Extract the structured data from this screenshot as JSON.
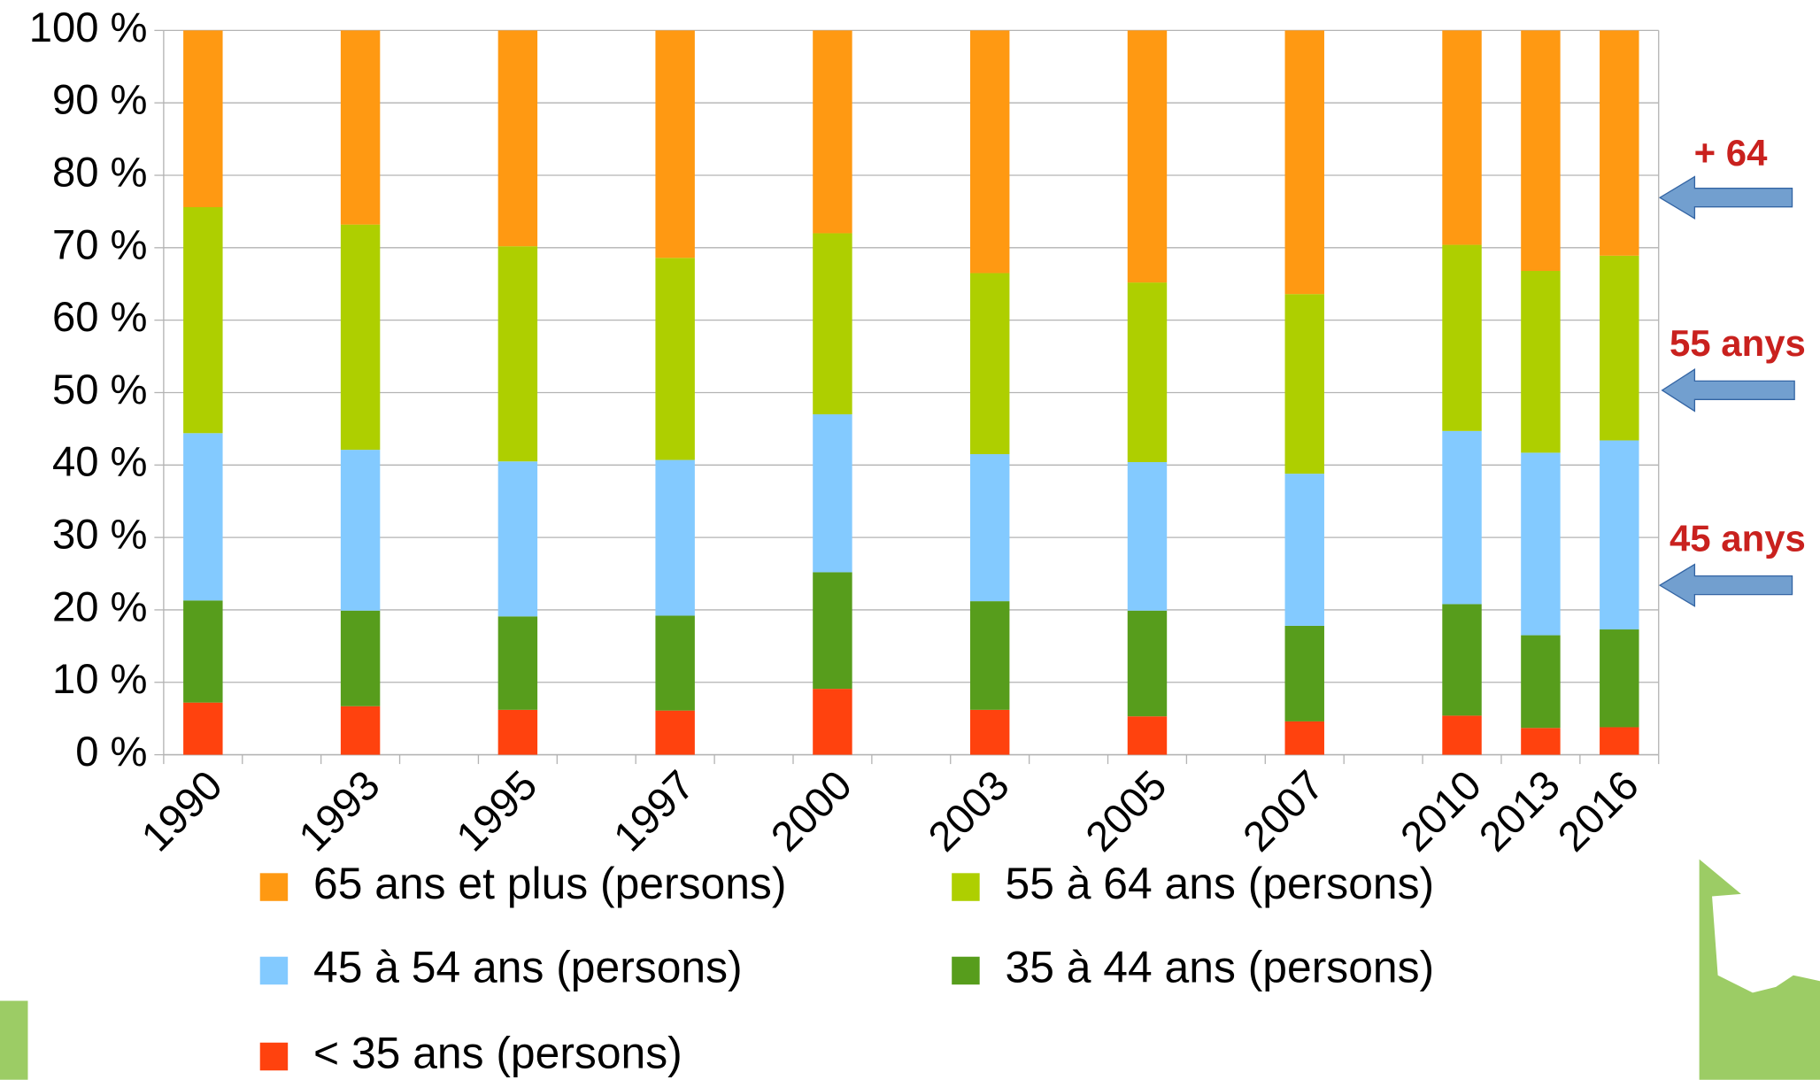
{
  "chart_data": {
    "type": "stacked-bar",
    "categories": [
      "1990",
      null,
      "1993",
      null,
      "1995",
      null,
      "1997",
      null,
      "2000",
      null,
      "2003",
      null,
      "2005",
      null,
      "2007",
      null,
      "2010",
      "2013",
      "2016"
    ],
    "series": [
      {
        "name": "65 ans et plus (persons)",
        "color": "#ff9912",
        "values": [
          24.4,
          null,
          26.8,
          null,
          29.8,
          null,
          31.4,
          null,
          28.0,
          null,
          33.5,
          null,
          34.8,
          null,
          36.4,
          null,
          29.6,
          33.2,
          31.1
        ]
      },
      {
        "name": "55 à 64 ans (persons)",
        "color": "#aecf00",
        "values": [
          31.2,
          null,
          31.1,
          null,
          29.7,
          null,
          27.9,
          null,
          25.0,
          null,
          25.0,
          null,
          24.8,
          null,
          24.8,
          null,
          25.7,
          25.1,
          25.5
        ]
      },
      {
        "name": "45 à 54 ans (persons)",
        "color": "#83caff",
        "values": [
          23.1,
          null,
          22.2,
          null,
          21.4,
          null,
          21.5,
          null,
          21.8,
          null,
          20.3,
          null,
          20.5,
          null,
          21.0,
          null,
          23.9,
          25.2,
          26.1
        ]
      },
      {
        "name": "35 à 44 ans (persons)",
        "color": "#579d1c",
        "values": [
          14.1,
          null,
          13.2,
          null,
          12.9,
          null,
          13.1,
          null,
          16.1,
          null,
          15.0,
          null,
          14.6,
          null,
          13.2,
          null,
          15.4,
          12.8,
          13.5
        ]
      },
      {
        "name": "< 35 ans (persons)",
        "color": "#ff420e",
        "values": [
          7.2,
          null,
          6.7,
          null,
          6.2,
          null,
          6.1,
          null,
          9.1,
          null,
          6.2,
          null,
          5.3,
          null,
          4.6,
          null,
          5.4,
          3.7,
          3.8
        ]
      }
    ],
    "ylim": [
      0,
      100
    ],
    "yticks": [
      {
        "value": 0,
        "label": "0 %"
      },
      {
        "value": 10,
        "label": "10 %"
      },
      {
        "value": 20,
        "label": "20 %"
      },
      {
        "value": 30,
        "label": "30 %"
      },
      {
        "value": 40,
        "label": "40 %"
      },
      {
        "value": 50,
        "label": "50 %"
      },
      {
        "value": 60,
        "label": "60 %"
      },
      {
        "value": 70,
        "label": "70 %"
      },
      {
        "value": 80,
        "label": "80 %"
      },
      {
        "value": 90,
        "label": "90 %"
      },
      {
        "value": 100,
        "label": "100 %"
      }
    ],
    "grid": true,
    "annotations": [
      {
        "text": "+ 64",
        "color": "#c9211e"
      },
      {
        "text": "55 anys",
        "color": "#c9211e"
      },
      {
        "text": "45 anys",
        "color": "#c9211e"
      }
    ]
  }
}
